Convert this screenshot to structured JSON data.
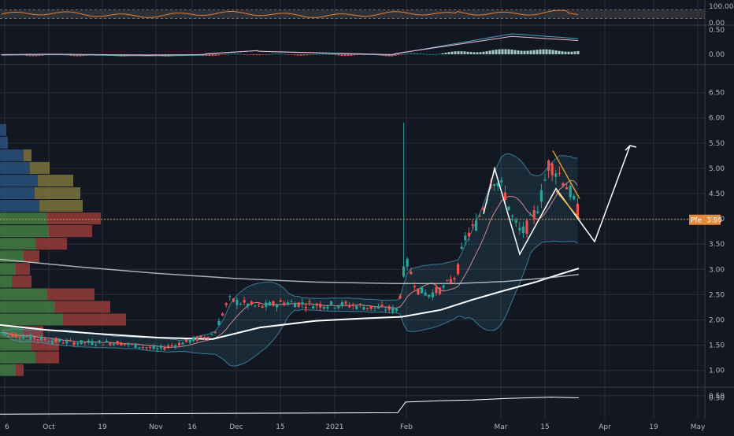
{
  "chart_data": {
    "type": "candlestick",
    "symbol_label": "Pfe",
    "last_price_label": "3.99",
    "last_price": 3.99,
    "price_axis_ticks": [
      "6.50",
      "6.00",
      "5.50",
      "5.00",
      "4.50",
      "4.00",
      "3.50",
      "3.00",
      "2.50",
      "2.00",
      "1.50",
      "1.00",
      "0.50"
    ],
    "price_axis_values": [
      6.5,
      6.0,
      5.5,
      5.0,
      4.5,
      4.0,
      3.5,
      3.0,
      2.5,
      2.0,
      1.5,
      1.0,
      0.5
    ],
    "price_range": [
      0.25,
      6.65
    ],
    "time_axis_labels": [
      "6",
      "Oct",
      "19",
      "Nov",
      "16",
      "Dec",
      "15",
      "2021",
      "Feb",
      "Mar",
      "15",
      "Apr",
      "19",
      "May"
    ],
    "rsi_panel": {
      "ticks": [
        "100.00",
        "0.00"
      ],
      "range": [
        0,
        100
      ],
      "band": [
        30,
        70
      ]
    },
    "macd_panel": {
      "ticks": [
        "0.50",
        "0.00"
      ],
      "range": [
        -0.1,
        0.55
      ]
    },
    "volume_panel": {
      "ticks": [
        "0.50"
      ]
    },
    "colors": {
      "up": "#26a69a",
      "down": "#ef5350",
      "background": "#131722",
      "grid": "#2a2e39",
      "axis_text": "#b2b5be",
      "sma_fast": "#f6a1a1",
      "sma_slow": "#ffffff",
      "sma_long": "#d1d4dc",
      "bollinger": "#4aa3c4",
      "pattern": "#ffffff",
      "wedge": "#f5a623",
      "price_tag": "#e28a3a",
      "rsi": "#e0803a",
      "vp_up": "#4c8a4a",
      "vp_down": "#a8403c",
      "vp_va_up": "#2e5a8a",
      "vp_va_down": "#8a8040"
    }
  }
}
